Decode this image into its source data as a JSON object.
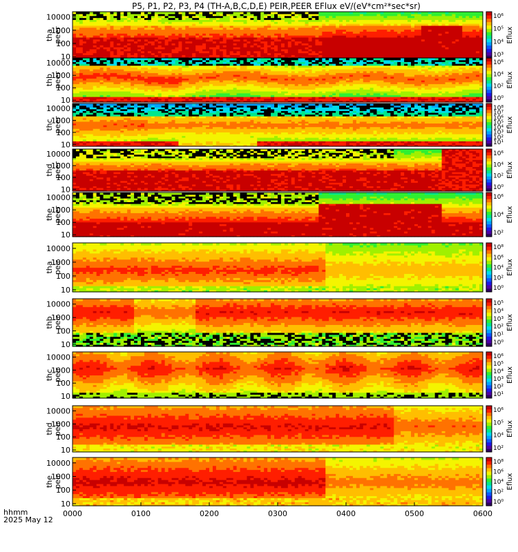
{
  "title": "P5, P1, P2, P3, P4 (TH-A,B,C,D,E) PEIR,PEER EFlux eV/(eV*cm²*sec*sr)",
  "footer": {
    "time_format": "hhmm",
    "date": "2025 May 12"
  },
  "colorbar_label": "Eflux",
  "chart_data": {
    "type": "heatmap",
    "x_ticks": [
      "0000",
      "0100",
      "0200",
      "0300",
      "0400",
      "0500",
      "0600"
    ],
    "x_range_hours": [
      0,
      6
    ],
    "y_scale": "log",
    "y_ticks": [
      "10",
      "100",
      "1000",
      "10000"
    ],
    "panels": [
      {
        "probe": "tha",
        "instrument": "peer",
        "cbar_ticks": [
          "10⁶",
          "10⁵",
          "10⁴",
          "10³"
        ],
        "ylim_eV": [
          7,
          25000
        ],
        "profile": "e1"
      },
      {
        "probe": "thb",
        "instrument": "peer",
        "cbar_ticks": [
          "10⁶",
          "10⁴",
          "10²",
          "10⁰"
        ],
        "ylim_eV": [
          7,
          25000
        ],
        "profile": "e2"
      },
      {
        "probe": "thc",
        "instrument": "peer",
        "cbar_ticks": [
          "10⁸",
          "10⁷",
          "10⁶",
          "10⁵",
          "10⁴",
          "10³",
          "10²",
          "10¹"
        ],
        "ylim_eV": [
          7,
          25000
        ],
        "profile": "e3"
      },
      {
        "probe": "thd",
        "instrument": "peer",
        "cbar_ticks": [
          "10⁶",
          "10⁴",
          "10²",
          "10⁰"
        ],
        "ylim_eV": [
          7,
          25000
        ],
        "profile": "e4"
      },
      {
        "probe": "the",
        "instrument": "peer",
        "cbar_ticks": [
          "10⁶",
          "10⁴",
          "10²"
        ],
        "ylim_eV": [
          7,
          25000
        ],
        "profile": "e5"
      },
      {
        "probe": "tha",
        "instrument": "peir",
        "cbar_ticks": [
          "10⁸",
          "10⁶",
          "10⁴",
          "10²",
          "10⁰"
        ],
        "ylim_eV": [
          7,
          25000
        ],
        "profile": "i1"
      },
      {
        "probe": "thb",
        "instrument": "peir",
        "cbar_ticks": [
          "10⁵",
          "10⁴",
          "10³",
          "10²",
          "10¹",
          "10⁰"
        ],
        "ylim_eV": [
          7,
          25000
        ],
        "profile": "i2"
      },
      {
        "probe": "thc",
        "instrument": "peir",
        "cbar_ticks": [
          "10⁶",
          "10⁵",
          "10⁴",
          "10³",
          "10²",
          "10¹"
        ],
        "ylim_eV": [
          7,
          25000
        ],
        "profile": "i3"
      },
      {
        "probe": "thd",
        "instrument": "peir",
        "cbar_ticks": [
          "10⁶",
          "10⁵",
          "10⁴",
          "10²"
        ],
        "ylim_eV": [
          7,
          25000
        ],
        "profile": "i4"
      },
      {
        "probe": "the",
        "instrument": "peir",
        "cbar_ticks": [
          "10⁸",
          "10⁶",
          "10⁴",
          "10²",
          "10⁰"
        ],
        "ylim_eV": [
          7,
          25000
        ],
        "profile": "i5"
      }
    ]
  }
}
